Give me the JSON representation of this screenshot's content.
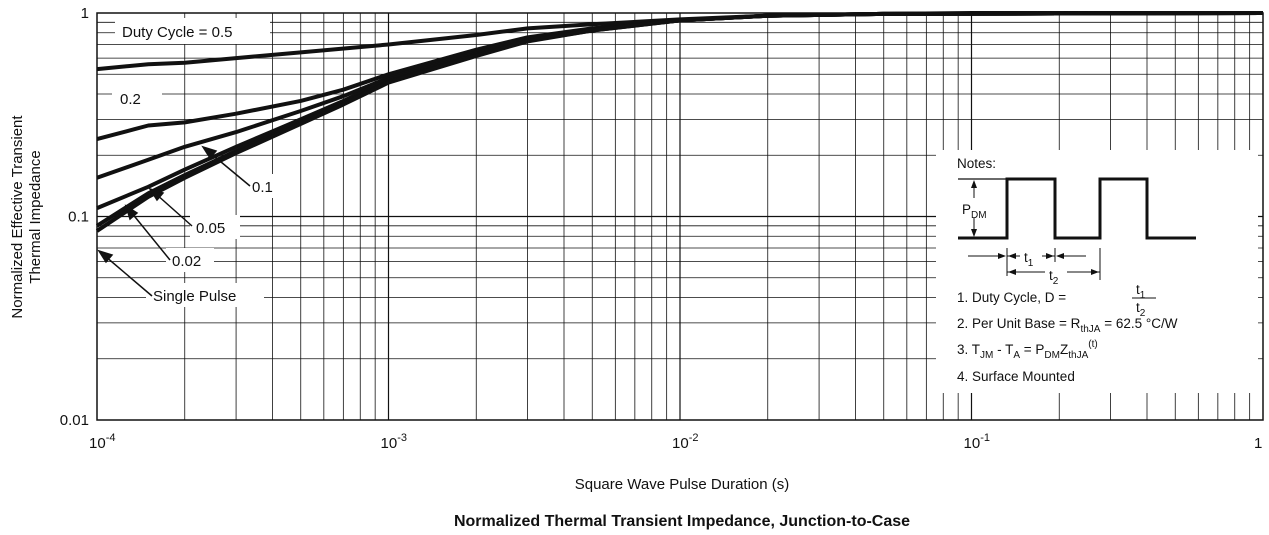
{
  "chart_data": {
    "type": "line",
    "title": "Normalized Thermal Transient Impedance, Junction-to-Case",
    "xlabel": "Square Wave Pulse Duration (s)",
    "ylabel_line1": "Normalized Effective Transient",
    "ylabel_line2": "Thermal Impedance",
    "x_scale": "log",
    "y_scale": "log",
    "xlim": [
      0.0001,
      1
    ],
    "ylim": [
      0.01,
      1
    ],
    "grid": true,
    "x_ticks": [
      {
        "value": 0.0001,
        "base": "10",
        "exp": "-4"
      },
      {
        "value": 0.001,
        "base": "10",
        "exp": "-3"
      },
      {
        "value": 0.01,
        "base": "10",
        "exp": "-2"
      },
      {
        "value": 0.1,
        "base": "10",
        "exp": "-1"
      },
      {
        "value": 1,
        "base": "1",
        "exp": ""
      }
    ],
    "y_ticks": [
      {
        "value": 1,
        "label": "1"
      },
      {
        "value": 0.1,
        "label": "0.1"
      },
      {
        "value": 0.01,
        "label": "0.01"
      }
    ],
    "series": [
      {
        "name": "Duty Cycle = 0.5",
        "x": [
          0.0001,
          0.00015,
          0.0002,
          0.0003,
          0.0005,
          0.001,
          0.002,
          0.003,
          0.005,
          0.01,
          0.02,
          0.05,
          0.1,
          1
        ],
        "y": [
          0.53,
          0.56,
          0.57,
          0.6,
          0.64,
          0.7,
          0.78,
          0.84,
          0.88,
          0.93,
          0.97,
          0.99,
          1.0,
          1.0
        ]
      },
      {
        "name": "0.2",
        "x": [
          0.0001,
          0.00015,
          0.0002,
          0.0003,
          0.0005,
          0.0007,
          0.001,
          0.002,
          0.003,
          0.005,
          0.01,
          0.02,
          0.05,
          1
        ],
        "y": [
          0.24,
          0.28,
          0.29,
          0.32,
          0.37,
          0.42,
          0.5,
          0.66,
          0.76,
          0.84,
          0.92,
          0.97,
          0.99,
          1.0
        ]
      },
      {
        "name": "0.1",
        "x": [
          0.0001,
          0.00015,
          0.0002,
          0.0003,
          0.0005,
          0.0007,
          0.001,
          0.002,
          0.003,
          0.005,
          0.01,
          0.02,
          0.05,
          1
        ],
        "y": [
          0.155,
          0.19,
          0.22,
          0.26,
          0.33,
          0.39,
          0.48,
          0.64,
          0.75,
          0.83,
          0.92,
          0.97,
          0.99,
          1.0
        ]
      },
      {
        "name": "0.05",
        "x": [
          0.0001,
          0.00015,
          0.0002,
          0.0003,
          0.0005,
          0.0007,
          0.001,
          0.002,
          0.003,
          0.005,
          0.01,
          0.02,
          0.05,
          1
        ],
        "y": [
          0.11,
          0.14,
          0.17,
          0.22,
          0.3,
          0.37,
          0.47,
          0.63,
          0.74,
          0.83,
          0.92,
          0.97,
          0.99,
          1.0
        ]
      },
      {
        "name": "0.02",
        "x": [
          0.0001,
          0.00015,
          0.0002,
          0.0003,
          0.0005,
          0.0007,
          0.001,
          0.002,
          0.003,
          0.005,
          0.01,
          0.02,
          0.05,
          1
        ],
        "y": [
          0.09,
          0.13,
          0.16,
          0.21,
          0.29,
          0.36,
          0.46,
          0.62,
          0.73,
          0.82,
          0.92,
          0.97,
          0.99,
          1.0
        ]
      },
      {
        "name": "Single Pulse",
        "x": [
          0.0001,
          0.00015,
          0.0002,
          0.0003,
          0.0005,
          0.0007,
          0.001,
          0.002,
          0.003,
          0.005,
          0.01,
          0.02,
          0.05,
          1
        ],
        "y": [
          0.085,
          0.125,
          0.155,
          0.205,
          0.285,
          0.355,
          0.455,
          0.615,
          0.725,
          0.82,
          0.92,
          0.97,
          0.99,
          1.0
        ]
      }
    ],
    "annotations": {
      "duty_cycle_label": "Duty Cycle = 0.5",
      "label_02": "0.2",
      "label_01": "0.1",
      "label_005": "0.05",
      "label_002": "0.02",
      "label_single": "Single Pulse"
    },
    "notes": {
      "heading": "Notes:",
      "pdm_main": "P",
      "pdm_sub": "DM",
      "t1_main": "t",
      "t1_sub": "1",
      "t2_main": "t",
      "t2_sub": "2",
      "note1_prefix": "1. Duty Cycle, D = ",
      "note2_prefix": "2. Per Unit Base = R",
      "note2_sub": "thJA",
      "note2_suffix": " = 62.5 °C/W",
      "note3_a": "3. T",
      "note3_a_sub": "JM",
      "note3_b": " - T",
      "note3_b_sub": "A",
      "note3_c": " = P",
      "note3_c_sub": "DM",
      "note3_d": "Z",
      "note3_d_sub": "thJA",
      "note3_e": "(t)",
      "note4": "4. Surface Mounted"
    }
  }
}
